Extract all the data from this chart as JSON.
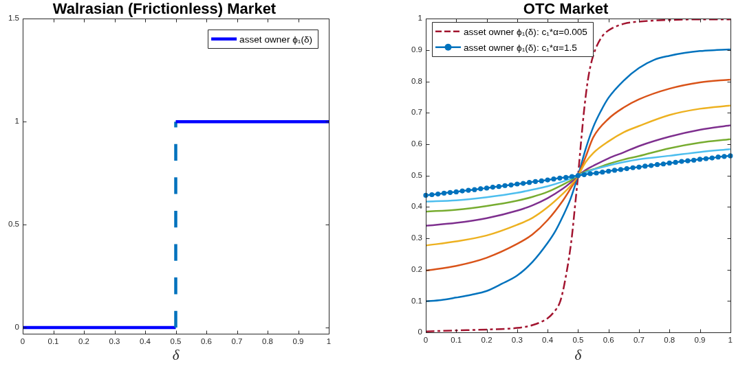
{
  "chart_data": [
    {
      "type": "line",
      "title": "Walrasian (Frictionless) Market",
      "xlabel": "δ",
      "xlim": [
        0,
        1
      ],
      "xticks": [
        0,
        0.1,
        0.2,
        0.3,
        0.4,
        0.5,
        0.6,
        0.7,
        0.8,
        0.9,
        1
      ],
      "ylim": [
        -0.03,
        1.5
      ],
      "yticks": [
        0,
        0.5,
        1,
        1.5
      ],
      "legend": "top right",
      "series": [
        {
          "name": "asset owner ϕ₁(δ)",
          "color": "#0000ff",
          "x": [
            0,
            0.5
          ],
          "values": [
            0,
            0
          ]
        },
        {
          "color": "#0072bd",
          "line_style": "dashed",
          "x": [
            0.5,
            0.5
          ],
          "values": [
            0,
            1
          ]
        },
        {
          "color": "#0000ff",
          "x": [
            0.5,
            1
          ],
          "values": [
            1,
            1
          ]
        }
      ]
    },
    {
      "type": "line",
      "title": "OTC Market",
      "xlabel": "δ",
      "xlim": [
        0,
        1
      ],
      "xticks": [
        0,
        0.1,
        0.2,
        0.3,
        0.4,
        0.5,
        0.6,
        0.7,
        0.8,
        0.9,
        1
      ],
      "ylim": [
        0,
        1
      ],
      "yticks": [
        0,
        0.1,
        0.2,
        0.3,
        0.4,
        0.5,
        0.6,
        0.7,
        0.8,
        0.9,
        1
      ],
      "legend": "top left",
      "series": [
        {
          "name": "asset owner ϕ₁(δ): c₁*α=0.005",
          "color": "#a2142f",
          "line_style": "dashed",
          "x": [
            0,
            0.1,
            0.2,
            0.3,
            0.35,
            0.4,
            0.42,
            0.44,
            0.45,
            0.46,
            0.47,
            0.48,
            0.49,
            0.5,
            0.51,
            0.52,
            0.53,
            0.54,
            0.55,
            0.56,
            0.58,
            0.6,
            0.65,
            0.7,
            0.8,
            0.9,
            1
          ],
          "values": [
            0.003,
            0.006,
            0.009,
            0.014,
            0.023,
            0.045,
            0.064,
            0.095,
            0.13,
            0.179,
            0.236,
            0.308,
            0.403,
            0.5,
            0.61,
            0.71,
            0.79,
            0.846,
            0.883,
            0.91,
            0.945,
            0.963,
            0.984,
            0.991,
            0.996,
            0.998,
            0.998
          ]
        },
        {
          "color": "#0072bd",
          "x": [
            0,
            0.05,
            0.1,
            0.15,
            0.2,
            0.25,
            0.3,
            0.35,
            0.4,
            0.425,
            0.45,
            0.475,
            0.5,
            0.525,
            0.55,
            0.575,
            0.6,
            0.65,
            0.7,
            0.75,
            0.8,
            0.85,
            0.9,
            0.95,
            1
          ],
          "values": [
            0.099,
            0.103,
            0.111,
            0.12,
            0.132,
            0.155,
            0.181,
            0.224,
            0.285,
            0.322,
            0.37,
            0.425,
            0.5,
            0.585,
            0.655,
            0.706,
            0.748,
            0.803,
            0.843,
            0.869,
            0.882,
            0.891,
            0.897,
            0.9,
            0.902
          ]
        },
        {
          "color": "#d95319",
          "x": [
            0,
            0.1,
            0.2,
            0.3,
            0.35,
            0.4,
            0.45,
            0.475,
            0.5,
            0.525,
            0.55,
            0.6,
            0.65,
            0.7,
            0.8,
            0.9,
            1
          ],
          "values": [
            0.197,
            0.212,
            0.238,
            0.282,
            0.312,
            0.358,
            0.42,
            0.458,
            0.5,
            0.56,
            0.622,
            0.681,
            0.717,
            0.743,
            0.777,
            0.797,
            0.806
          ]
        },
        {
          "color": "#edb120",
          "x": [
            0,
            0.1,
            0.2,
            0.3,
            0.35,
            0.4,
            0.45,
            0.475,
            0.5,
            0.525,
            0.55,
            0.6,
            0.65,
            0.7,
            0.8,
            0.9,
            1
          ],
          "values": [
            0.277,
            0.29,
            0.309,
            0.343,
            0.365,
            0.399,
            0.442,
            0.467,
            0.5,
            0.543,
            0.572,
            0.609,
            0.638,
            0.658,
            0.693,
            0.713,
            0.723
          ]
        },
        {
          "color": "#7e2f8e",
          "x": [
            0,
            0.1,
            0.2,
            0.3,
            0.35,
            0.4,
            0.45,
            0.475,
            0.5,
            0.525,
            0.55,
            0.6,
            0.65,
            0.7,
            0.8,
            0.9,
            1
          ],
          "values": [
            0.34,
            0.349,
            0.364,
            0.388,
            0.405,
            0.428,
            0.458,
            0.477,
            0.5,
            0.518,
            0.531,
            0.555,
            0.574,
            0.594,
            0.624,
            0.646,
            0.66
          ]
        },
        {
          "color": "#77ac30",
          "x": [
            0,
            0.1,
            0.2,
            0.3,
            0.35,
            0.4,
            0.45,
            0.475,
            0.5,
            0.525,
            0.55,
            0.6,
            0.65,
            0.7,
            0.8,
            0.9,
            1
          ],
          "values": [
            0.385,
            0.391,
            0.403,
            0.42,
            0.432,
            0.448,
            0.471,
            0.484,
            0.5,
            0.513,
            0.52,
            0.537,
            0.551,
            0.562,
            0.587,
            0.605,
            0.616
          ]
        },
        {
          "color": "#4dbeee",
          "x": [
            0,
            0.1,
            0.2,
            0.3,
            0.35,
            0.4,
            0.45,
            0.5,
            0.55,
            0.6,
            0.65,
            0.7,
            0.8,
            0.9,
            1
          ],
          "values": [
            0.417,
            0.421,
            0.431,
            0.445,
            0.455,
            0.466,
            0.481,
            0.5,
            0.519,
            0.532,
            0.543,
            0.552,
            0.563,
            0.575,
            0.584
          ]
        },
        {
          "name": "asset owner ϕ₁(δ): c₁*α=1.5",
          "color": "#0072bd",
          "marker": "circle",
          "x": [
            0,
            0.02,
            0.04,
            0.06,
            0.08,
            0.1,
            0.12,
            0.14,
            0.16,
            0.18,
            0.2,
            0.22,
            0.24,
            0.26,
            0.28,
            0.3,
            0.32,
            0.34,
            0.36,
            0.38,
            0.4,
            0.42,
            0.44,
            0.46,
            0.48,
            0.5,
            0.52,
            0.54,
            0.56,
            0.58,
            0.6,
            0.62,
            0.64,
            0.66,
            0.68,
            0.7,
            0.72,
            0.74,
            0.76,
            0.78,
            0.8,
            0.82,
            0.84,
            0.86,
            0.88,
            0.9,
            0.92,
            0.94,
            0.96,
            0.98,
            1
          ],
          "values": [
            0.437,
            0.439,
            0.441,
            0.444,
            0.446,
            0.448,
            0.451,
            0.453,
            0.455,
            0.458,
            0.46,
            0.463,
            0.465,
            0.468,
            0.47,
            0.473,
            0.475,
            0.478,
            0.481,
            0.483,
            0.486,
            0.489,
            0.492,
            0.494,
            0.497,
            0.5,
            0.503,
            0.506,
            0.508,
            0.511,
            0.514,
            0.517,
            0.519,
            0.522,
            0.525,
            0.527,
            0.53,
            0.532,
            0.535,
            0.537,
            0.54,
            0.542,
            0.545,
            0.547,
            0.549,
            0.552,
            0.554,
            0.556,
            0.559,
            0.561,
            0.563
          ]
        }
      ]
    }
  ]
}
